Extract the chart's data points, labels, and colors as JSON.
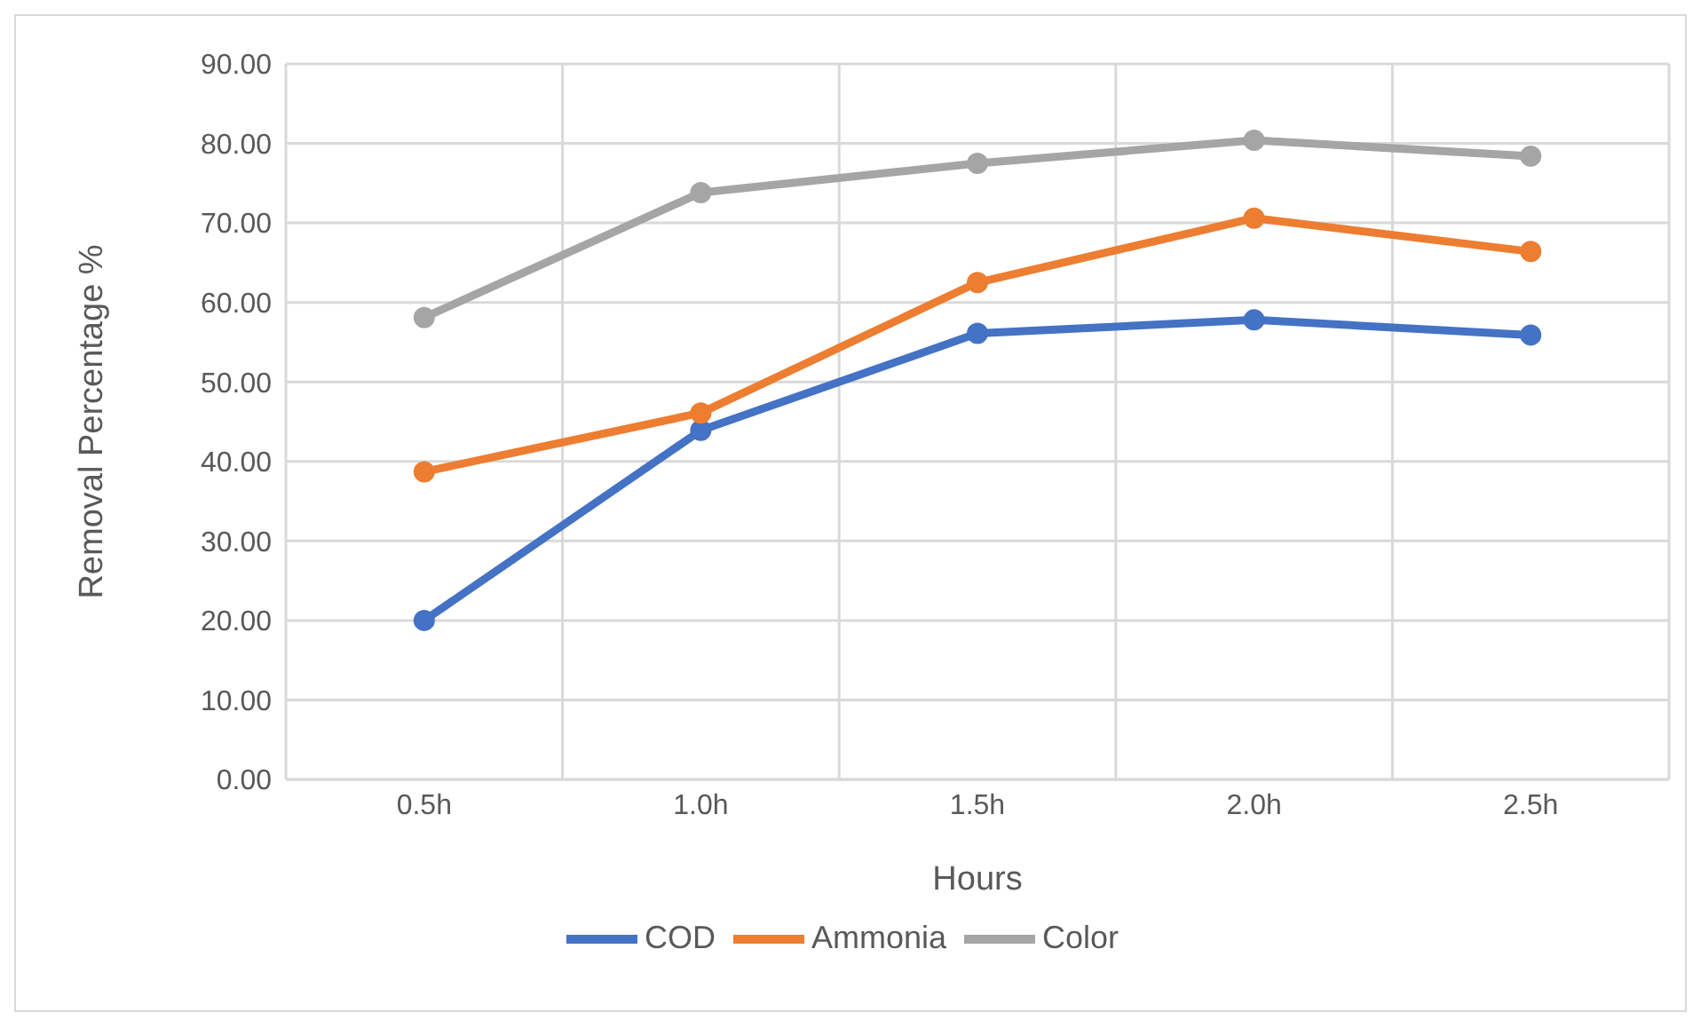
{
  "chart_data": {
    "type": "line",
    "xlabel": "Hours",
    "ylabel": "Removal Percentage %",
    "categories": [
      "0.5h",
      "1.0h",
      "1.5h",
      "2.0h",
      "2.5h"
    ],
    "series": [
      {
        "name": "COD",
        "color": "#4472c4",
        "values": [
          20.0,
          43.9,
          56.1,
          57.8,
          55.9
        ]
      },
      {
        "name": "Ammonia",
        "color": "#ed7d31",
        "values": [
          38.7,
          46.1,
          62.5,
          70.6,
          66.4
        ]
      },
      {
        "name": "Color",
        "color": "#a5a5a5",
        "values": [
          58.1,
          73.8,
          77.5,
          80.4,
          78.4
        ]
      }
    ],
    "ylim": [
      0,
      90
    ],
    "yticks": [
      {
        "value": 0,
        "label": "0.00"
      },
      {
        "value": 10,
        "label": "10.00"
      },
      {
        "value": 20,
        "label": "20.00"
      },
      {
        "value": 30,
        "label": "30.00"
      },
      {
        "value": 40,
        "label": "40.00"
      },
      {
        "value": 50,
        "label": "50.00"
      },
      {
        "value": 60,
        "label": "60.00"
      },
      {
        "value": 70,
        "label": "70.00"
      },
      {
        "value": 80,
        "label": "80.00"
      },
      {
        "value": 90,
        "label": "90.00"
      }
    ],
    "grid": true,
    "legend": "bottom",
    "marker": "circle",
    "line_style": "solid"
  }
}
